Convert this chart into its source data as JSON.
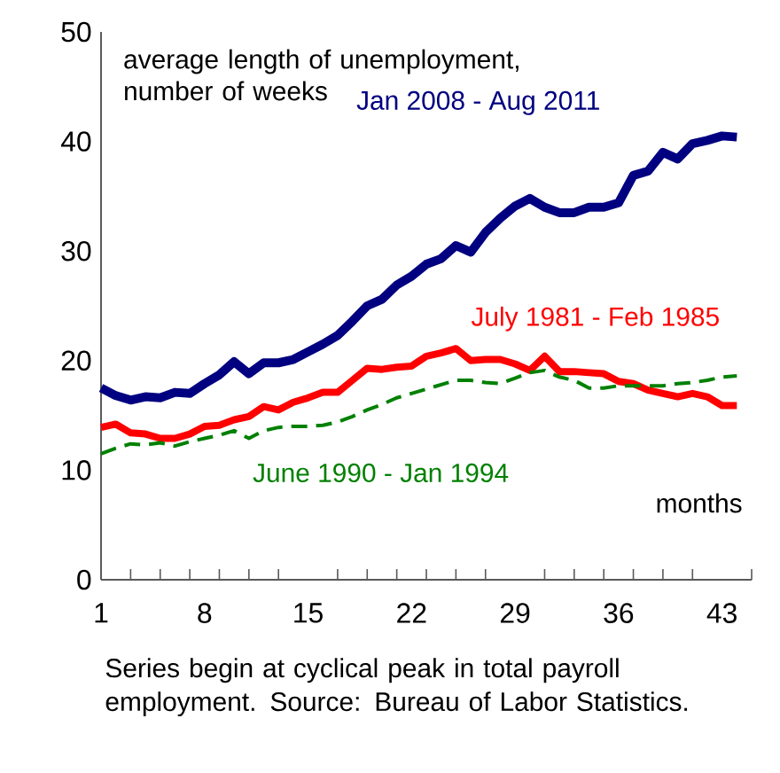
{
  "chart_data": {
    "type": "line",
    "ylabel": "average length of unemployment, number of weeks",
    "xlabel": "months",
    "x": [
      1,
      2,
      3,
      4,
      5,
      6,
      7,
      8,
      9,
      10,
      11,
      12,
      13,
      14,
      15,
      16,
      17,
      18,
      19,
      20,
      21,
      22,
      23,
      24,
      25,
      26,
      27,
      28,
      29,
      30,
      31,
      32,
      33,
      34,
      35,
      36,
      37,
      38,
      39,
      40,
      41,
      42,
      43,
      44
    ],
    "series": [
      {
        "name": "Jan 2008 - Aug 2011",
        "color": "#000080",
        "line_style": "solid",
        "values": [
          17.5,
          16.8,
          16.4,
          16.7,
          16.6,
          17.1,
          17.0,
          17.9,
          18.7,
          19.9,
          18.8,
          19.8,
          19.8,
          20.1,
          20.8,
          21.5,
          22.3,
          23.6,
          25.0,
          25.6,
          26.9,
          27.7,
          28.8,
          29.3,
          30.5,
          29.9,
          31.7,
          33.0,
          34.1,
          34.8,
          34.0,
          33.5,
          33.5,
          34.0,
          34.0,
          34.4,
          36.9,
          37.3,
          39.0,
          38.4,
          39.8,
          40.1,
          40.5,
          40.4
        ]
      },
      {
        "name": "July 1981 - Feb 1985",
        "color": "#ff0000",
        "line_style": "solid",
        "values": [
          13.9,
          14.2,
          13.4,
          13.3,
          12.9,
          12.9,
          13.3,
          14.0,
          14.1,
          14.6,
          14.9,
          15.8,
          15.5,
          16.2,
          16.6,
          17.1,
          17.1,
          18.2,
          19.3,
          19.2,
          19.4,
          19.5,
          20.4,
          20.7,
          21.1,
          20.0,
          20.1,
          20.1,
          19.7,
          19.1,
          20.4,
          19.0,
          19.0,
          18.9,
          18.8,
          18.1,
          17.9,
          17.3,
          17.0,
          16.7,
          17.0,
          16.7,
          15.9,
          15.9
        ]
      },
      {
        "name": "June 1990 - Jan 1994",
        "color": "#008000",
        "line_style": "dashed",
        "values": [
          11.5,
          12.0,
          12.4,
          12.3,
          12.5,
          12.2,
          12.6,
          12.9,
          13.2,
          13.6,
          12.9,
          13.6,
          13.9,
          14.0,
          14.0,
          14.1,
          14.4,
          14.9,
          15.5,
          16.0,
          16.6,
          17.0,
          17.4,
          17.8,
          18.2,
          18.2,
          18.0,
          17.9,
          18.4,
          18.9,
          19.1,
          18.5,
          18.2,
          17.5,
          17.5,
          17.7,
          17.7,
          17.7,
          17.7,
          17.9,
          18.0,
          18.2,
          18.5,
          18.6
        ]
      }
    ],
    "xlim": [
      1,
      45
    ],
    "xticks": [
      1,
      {
        "value": 3,
        "label": null
      },
      {
        "value": 5,
        "label": null
      },
      {
        "value": 7,
        "label": null
      },
      8,
      {
        "value": 9,
        "label": null
      },
      {
        "value": 11,
        "label": null
      },
      {
        "value": 13,
        "label": null
      },
      15,
      {
        "value": 17,
        "label": null
      },
      {
        "value": 19,
        "label": null
      },
      {
        "value": 21,
        "label": null
      },
      22,
      {
        "value": 23,
        "label": null
      },
      {
        "value": 25,
        "label": null
      },
      {
        "value": 27,
        "label": null
      },
      29,
      {
        "value": 31,
        "label": null
      },
      {
        "value": 33,
        "label": null
      },
      {
        "value": 35,
        "label": null
      },
      36,
      {
        "value": 37,
        "label": null
      },
      {
        "value": 39,
        "label": null
      },
      {
        "value": 41,
        "label": null
      },
      43,
      {
        "value": 45,
        "label": null
      }
    ],
    "ylim": [
      0,
      50
    ],
    "yticks": [
      0,
      10,
      20,
      30,
      40,
      50
    ],
    "annotations": [
      "Series begin at cyclical peak in total payroll employment.  Source: Bureau of Labor Statistics."
    ]
  }
}
